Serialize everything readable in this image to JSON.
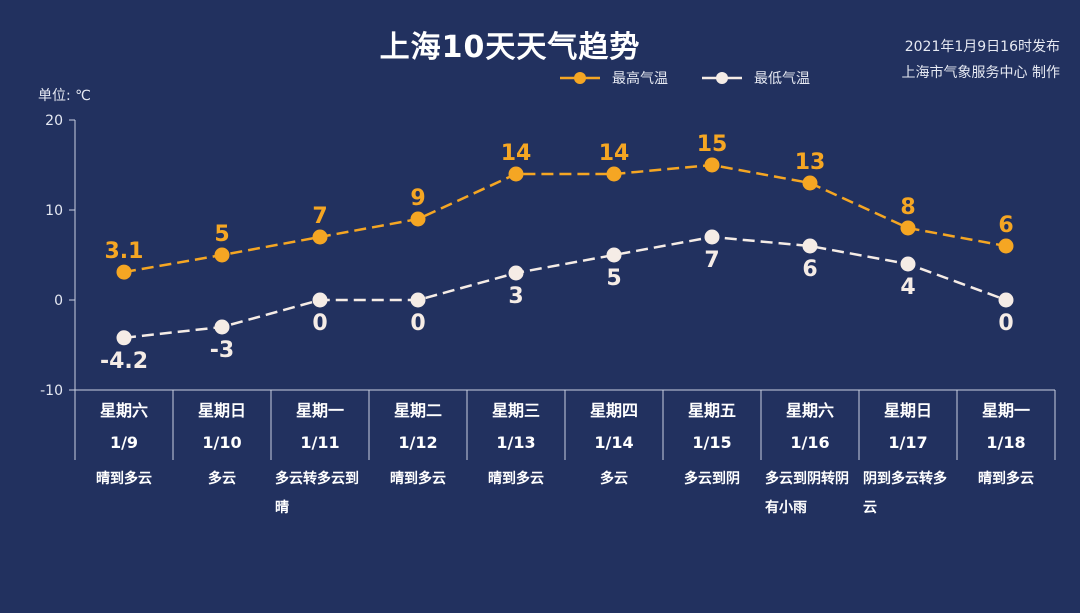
{
  "header": {
    "title": "上海10天天气趋势",
    "issue_time": "2021年1月9日16时发布",
    "issuer": "上海市气象服务中心 制作"
  },
  "colors": {
    "background": "#22315f",
    "high": "#f5a623",
    "low": "#f5ece6"
  },
  "chart_data": {
    "type": "line",
    "title": "上海10天天气趋势",
    "ylabel": "单位: ℃",
    "ylim": [
      -10,
      20
    ],
    "yticks": [
      "20",
      "10",
      "0",
      "-10"
    ],
    "legend_position": "top-right",
    "grid": false,
    "days": [
      {
        "weekday": "星期六",
        "date": "1/9",
        "weather": "晴到多云"
      },
      {
        "weekday": "星期日",
        "date": "1/10",
        "weather": "多云"
      },
      {
        "weekday": "星期一",
        "date": "1/11",
        "weather": "多云转多云到晴"
      },
      {
        "weekday": "星期二",
        "date": "1/12",
        "weather": "晴到多云"
      },
      {
        "weekday": "星期三",
        "date": "1/13",
        "weather": "晴到多云"
      },
      {
        "weekday": "星期四",
        "date": "1/14",
        "weather": "多云"
      },
      {
        "weekday": "星期五",
        "date": "1/15",
        "weather": "多云到阴"
      },
      {
        "weekday": "星期六",
        "date": "1/16",
        "weather": "多云到阴转阴有小雨"
      },
      {
        "weekday": "星期日",
        "date": "1/17",
        "weather": "阴到多云转多云"
      },
      {
        "weekday": "星期一",
        "date": "1/18",
        "weather": "晴到多云"
      }
    ],
    "series": [
      {
        "name": "最高气温",
        "values": [
          3.1,
          5,
          7,
          9,
          14,
          14,
          15,
          13,
          8,
          6
        ],
        "labels": [
          "3.1",
          "5",
          "7",
          "9",
          "14",
          "14",
          "15",
          "13",
          "8",
          "6"
        ]
      },
      {
        "name": "最低气温",
        "values": [
          -4.2,
          -3,
          0,
          0,
          3,
          5,
          7,
          6,
          4,
          0
        ],
        "labels": [
          "-4.2",
          "-3",
          "0",
          "0",
          "3",
          "5",
          "7",
          "6",
          "4",
          "0"
        ]
      }
    ]
  }
}
